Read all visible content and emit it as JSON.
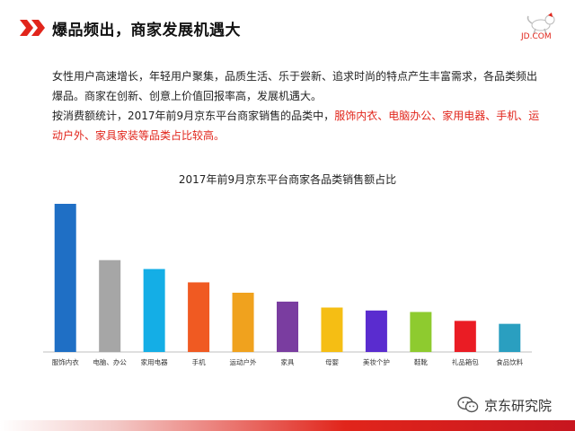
{
  "header": {
    "title": "爆品频出，商家发展机遇大"
  },
  "logo": {
    "text": "JD.COM",
    "brand_color": "#e1251b"
  },
  "body": {
    "line1": "女性用户高速增长，年轻用户聚集，品质生活、乐于尝新、追求时尚的特点产生丰富需求，各品类频出爆品。商家在创新、创意上价值回报率高，发展机遇大。",
    "line2_prefix": "按消费额统计，2017年前9月京东平台商家销售的品类中，",
    "line2_highlight": "服饰内衣、电脑办公、家用电器、手机、运动户外、家具家装等品类占比较高。"
  },
  "chart_data": {
    "type": "bar",
    "title": "2017年前9月京东平台商家各品类销售额占比",
    "categories": [
      "服饰内衣",
      "电脑、办公",
      "家用电器",
      "手机",
      "运动户外",
      "家具",
      "母婴",
      "美妆个护",
      "鞋靴",
      "礼品箱包",
      "食品饮料"
    ],
    "values": [
      100,
      62,
      56,
      47,
      40,
      34,
      30,
      28,
      27,
      21,
      19
    ],
    "colors": [
      "#1f6fc5",
      "#a6a6a6",
      "#14aee6",
      "#f05a22",
      "#f0a21e",
      "#7a3da0",
      "#f5be14",
      "#5a2ccf",
      "#8ecb2f",
      "#ea1c24",
      "#2a9fc0"
    ],
    "ylim": [
      0,
      100
    ],
    "grid": false,
    "legend": "none"
  },
  "watermark": {
    "text": "京东研究院",
    "icon": "wechat-icon"
  }
}
